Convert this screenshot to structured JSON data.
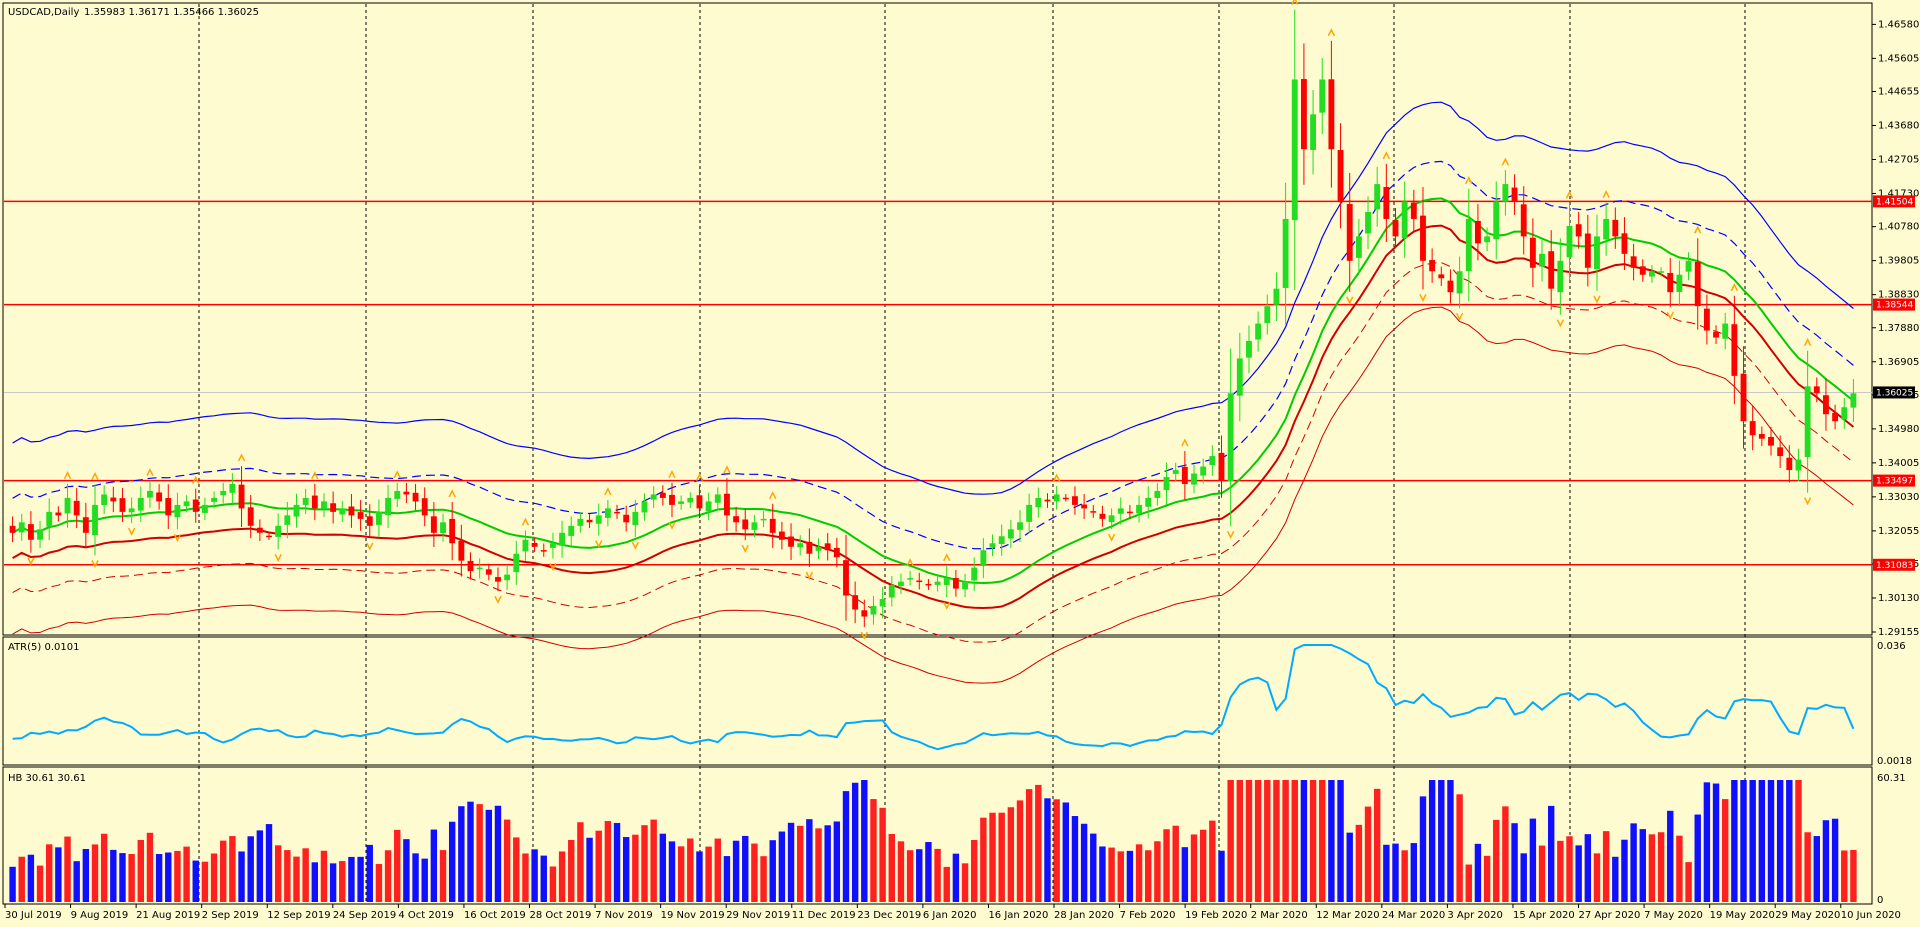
{
  "window": {
    "symbol_title": "USDCAD,Daily",
    "ohlc_text": "1.35983 1.36171 1.35466 1.36025"
  },
  "colors": {
    "background": "#fffbd0",
    "bull_candle": "#22dd22",
    "bear_candle": "#ff0000",
    "level_line": "#ff0000",
    "outer_band": "#0000ff",
    "mid_line": "#00cc00",
    "atr_line": "#00aaff",
    "hb_bull": "#ff2020",
    "hb_bear": "#1010ff",
    "fractal": "#ffa500"
  },
  "main_panel": {
    "price_ticks": [
      "1.46580",
      "1.45605",
      "1.44655",
      "1.43680",
      "1.42705",
      "1.41730",
      "1.40780",
      "1.39805",
      "1.38830",
      "1.37880",
      "1.36905",
      "1.35955",
      "1.34980",
      "1.34005",
      "1.33030",
      "1.32055",
      "1.31105",
      "1.30130",
      "1.29155"
    ],
    "level_tags": [
      "1.41504",
      "1.38544",
      "1.33497",
      "1.31083"
    ],
    "current_price_tag": "1.36025"
  },
  "atr_panel": {
    "title": "ATR(5) 0.0101",
    "ticks": [
      "0.036",
      "0.0018"
    ]
  },
  "hb_panel": {
    "title": "HB 30.61 30.61",
    "ticks": [
      "60.31",
      "0"
    ]
  },
  "date_labels": [
    "30 Jul 2019",
    "9 Aug 2019",
    "21 Aug 2019",
    "2 Sep 2019",
    "12 Sep 2019",
    "24 Sep 2019",
    "4 Oct 2019",
    "16 Oct 2019",
    "28 Oct 2019",
    "7 Nov 2019",
    "19 Nov 2019",
    "29 Nov 2019",
    "11 Dec 2019",
    "23 Dec 2019",
    "6 Jan 2020",
    "16 Jan 2020",
    "28 Jan 2020",
    "7 Feb 2020",
    "19 Feb 2020",
    "2 Mar 2020",
    "12 Mar 2020",
    "24 Mar 2020",
    "3 Apr 2020",
    "15 Apr 2020",
    "27 Apr 2020",
    "7 May 2020",
    "19 May 2020",
    "29 May 2020",
    "10 Jun 2020"
  ],
  "chart_data": {
    "type": "candlestick",
    "title": "USDCAD,Daily",
    "ylim": [
      1.29155,
      1.4705
    ],
    "horizontal_levels": [
      1.41504,
      1.38544,
      1.33497,
      1.31083
    ],
    "last_close": 1.36025,
    "closes": [
      1.32,
      1.323,
      1.318,
      1.321,
      1.326,
      1.325,
      1.33,
      1.325,
      1.32,
      1.328,
      1.331,
      1.329,
      1.326,
      1.327,
      1.33,
      1.332,
      1.329,
      1.325,
      1.328,
      1.329,
      1.326,
      1.328,
      1.33,
      1.332,
      1.334,
      1.327,
      1.322,
      1.32,
      1.319,
      1.322,
      1.325,
      1.328,
      1.33,
      1.327,
      1.329,
      1.326,
      1.327,
      1.325,
      1.324,
      1.322,
      1.326,
      1.33,
      1.332,
      1.331,
      1.329,
      1.325,
      1.32,
      1.323,
      1.317,
      1.312,
      1.309,
      1.31,
      1.308,
      1.306,
      1.308,
      1.314,
      1.318,
      1.316,
      1.315,
      1.317,
      1.32,
      1.322,
      1.324,
      1.323,
      1.325,
      1.327,
      1.326,
      1.323,
      1.326,
      1.329,
      1.331,
      1.33,
      1.328,
      1.329,
      1.33,
      1.327,
      1.329,
      1.331,
      1.325,
      1.323,
      1.321,
      1.323,
      1.324,
      1.32,
      1.318,
      1.316,
      1.317,
      1.314,
      1.316,
      1.315,
      1.313,
      1.302,
      1.298,
      1.296,
      1.299,
      1.301,
      1.305,
      1.306,
      1.307,
      1.306,
      1.305,
      1.306,
      1.307,
      1.304,
      1.306,
      1.31,
      1.315,
      1.317,
      1.319,
      1.321,
      1.323,
      1.328,
      1.33,
      1.329,
      1.331,
      1.33,
      1.328,
      1.327,
      1.326,
      1.324,
      1.325,
      1.327,
      1.326,
      1.328,
      1.33,
      1.332,
      1.336,
      1.338,
      1.334,
      1.337,
      1.339,
      1.342,
      1.335,
      1.36,
      1.37,
      1.375,
      1.38,
      1.385,
      1.39,
      1.41,
      1.45,
      1.43,
      1.44,
      1.45,
      1.43,
      1.415,
      1.398,
      1.405,
      1.412,
      1.42,
      1.41,
      1.405,
      1.415,
      1.41,
      1.398,
      1.395,
      1.393,
      1.389,
      1.395,
      1.41,
      1.403,
      1.405,
      1.415,
      1.42,
      1.415,
      1.405,
      1.396,
      1.4,
      1.39,
      1.398,
      1.408,
      1.405,
      1.396,
      1.405,
      1.41,
      1.405,
      1.4,
      1.396,
      1.394,
      1.395,
      1.395,
      1.389,
      1.394,
      1.398,
      1.385,
      1.378,
      1.376,
      1.38,
      1.365,
      1.352,
      1.348,
      1.347,
      1.345,
      1.342,
      1.338,
      1.341,
      1.362,
      1.36,
      1.354,
      1.352,
      1.356,
      1.36
    ],
    "atr": {
      "name": "ATR(5)",
      "last": 0.0101,
      "ylim": [
        0.0018,
        0.036
      ]
    },
    "hb": {
      "name": "HB",
      "last": 30.61,
      "ylim": [
        0,
        60.31
      ]
    }
  }
}
